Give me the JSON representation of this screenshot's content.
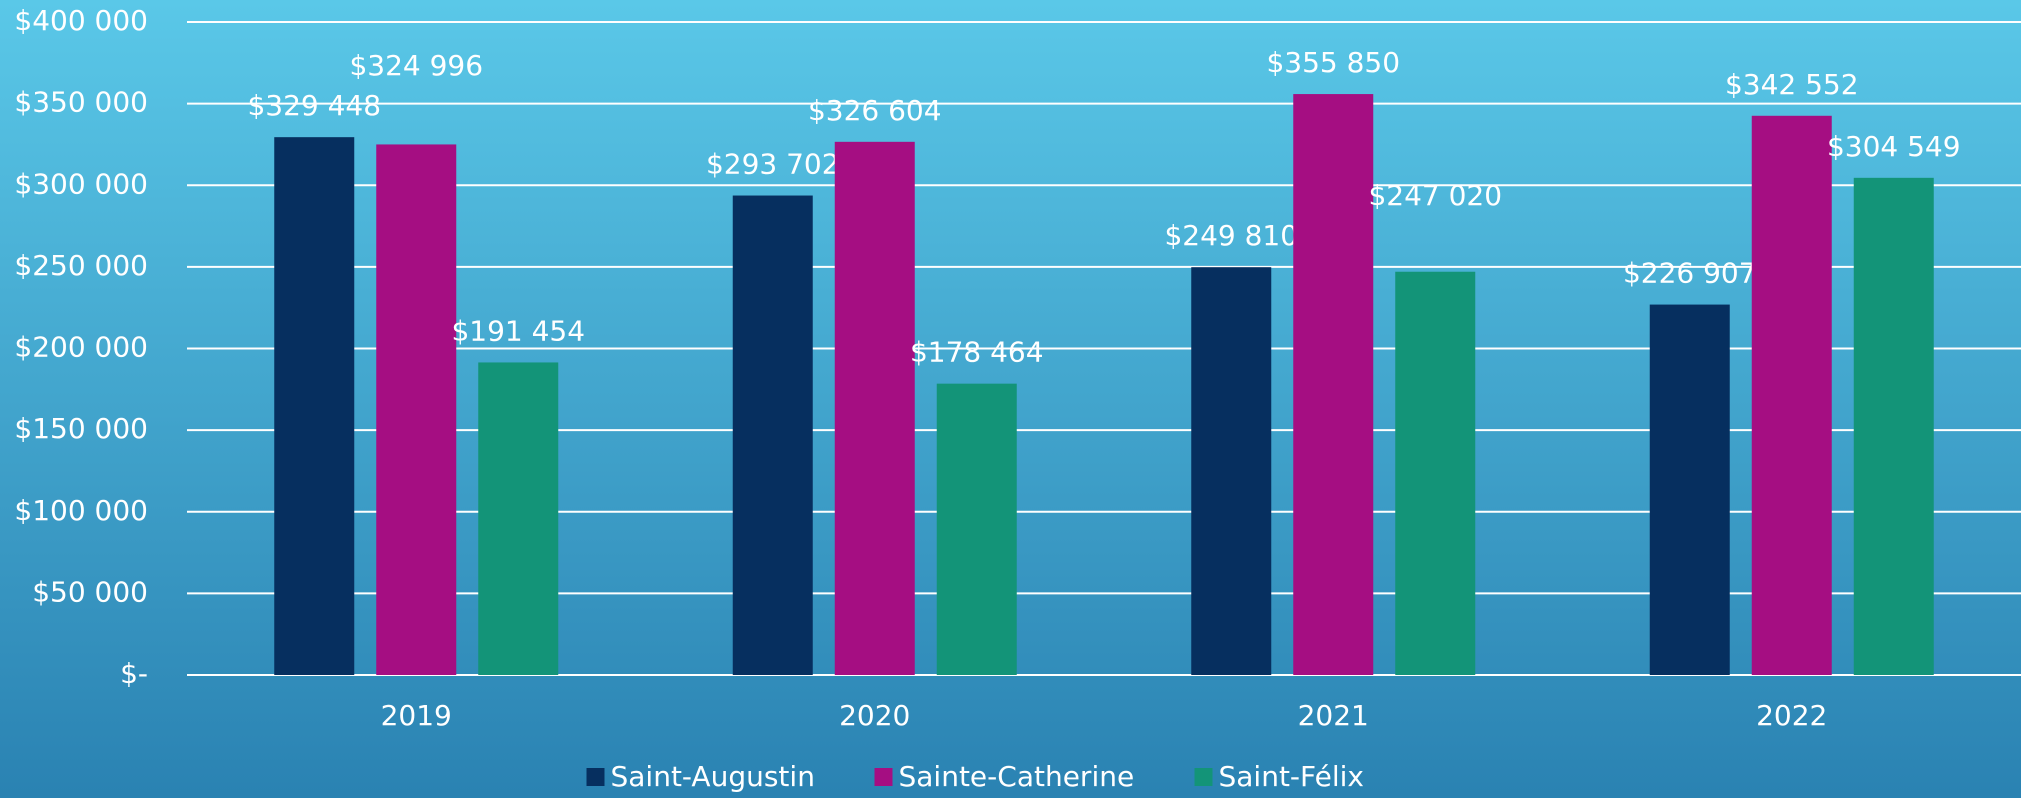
{
  "chart_data": {
    "type": "bar",
    "categories": [
      "2019",
      "2020",
      "2021",
      "2022"
    ],
    "series": [
      {
        "name": "Saint-Augustin",
        "color": "#062f5f",
        "values": [
          329448,
          293702,
          249810,
          226907
        ],
        "value_labels": [
          "$329 448",
          "$293 702",
          "$249 810",
          "$226 907"
        ]
      },
      {
        "name": "Sainte-Catherine",
        "color": "#a50e82",
        "values": [
          324996,
          326604,
          355850,
          342552
        ],
        "value_labels": [
          "$324 996",
          "$326 604",
          "$355 850",
          "$342 552"
        ]
      },
      {
        "name": "Saint-Félix",
        "color": "#139478",
        "values": [
          191454,
          178464,
          247020,
          304549
        ],
        "value_labels": [
          "$191 454",
          "$178 464",
          "$247 020",
          "$304 549"
        ]
      }
    ],
    "ylim": [
      0,
      400000
    ],
    "yticks": [
      {
        "value": 0,
        "label": "$-"
      },
      {
        "value": 50000,
        "label": "$50 000"
      },
      {
        "value": 100000,
        "label": "$100 000"
      },
      {
        "value": 150000,
        "label": "$150 000"
      },
      {
        "value": 200000,
        "label": "$200 000"
      },
      {
        "value": 250000,
        "label": "$250 000"
      },
      {
        "value": 300000,
        "label": "$300 000"
      },
      {
        "value": 350000,
        "label": "$350 000"
      },
      {
        "value": 400000,
        "label": "$400 000"
      }
    ],
    "grid": true,
    "legend": "bottom"
  }
}
